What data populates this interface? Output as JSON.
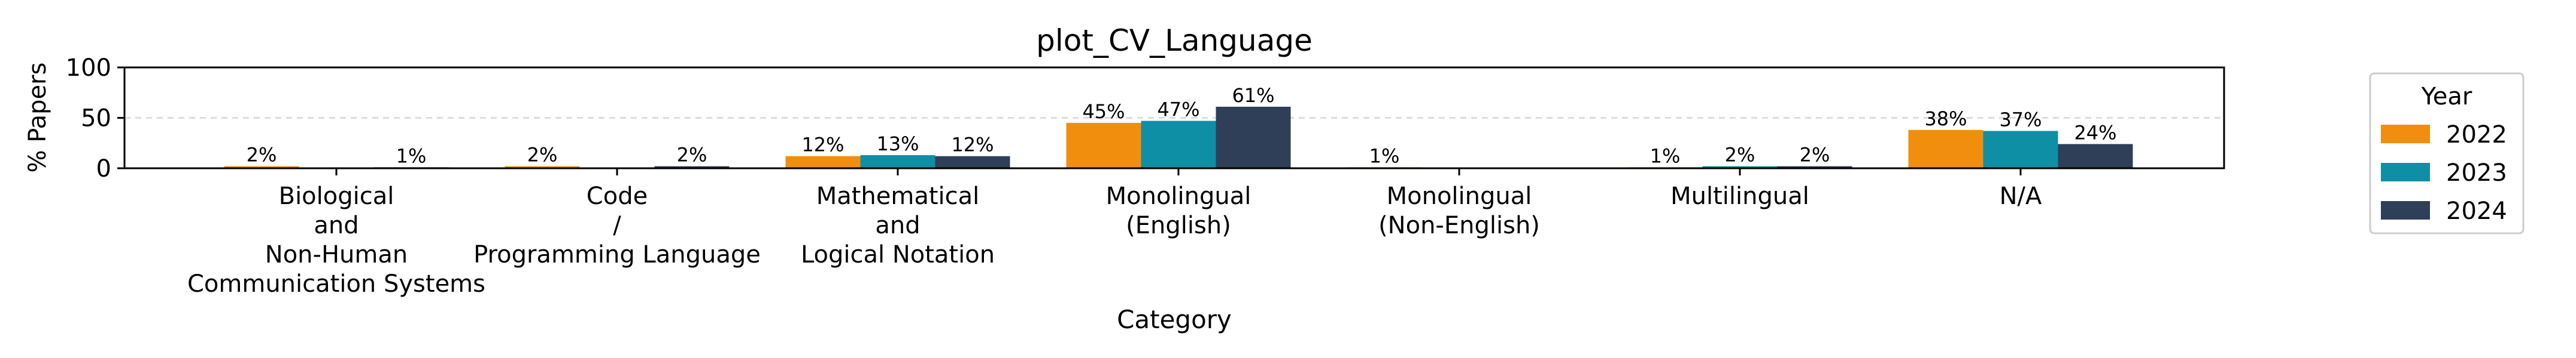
{
  "chart_data": {
    "type": "bar",
    "title": "plot_CV_Language",
    "xlabel": "Category",
    "ylabel": "% Papers",
    "ylim": [
      0,
      100
    ],
    "yticks": [
      "0",
      "50",
      "100"
    ],
    "grid": "horizontal dashed",
    "legend": {
      "title": "Year",
      "placement": "right"
    },
    "categories": [
      "Biological\nand\nNon-Human\nCommunication Systems",
      "Code\n/\nProgramming Language",
      "Mathematical\nand\nLogical Notation",
      "Monolingual\n(English)",
      "Monolingual\n(Non-English)",
      "Multilingual",
      "N/A"
    ],
    "series": [
      {
        "name": "2022",
        "color": "#f28e0e",
        "values": [
          2,
          2,
          12,
          45,
          1,
          1,
          38
        ],
        "labels": [
          "2%",
          "2%",
          "12%",
          "45%",
          "1%",
          "1%",
          "38%"
        ]
      },
      {
        "name": "2023",
        "color": "#0e8fa6",
        "values": [
          0,
          0,
          13,
          47,
          0,
          2,
          37
        ],
        "labels": [
          "",
          "",
          "13%",
          "47%",
          "",
          "2%",
          "37%"
        ]
      },
      {
        "name": "2024",
        "color": "#2e3f57",
        "values": [
          1,
          2,
          12,
          61,
          0,
          2,
          24
        ],
        "labels": [
          "1%",
          "2%",
          "12%",
          "61%",
          "",
          "2%",
          "24%"
        ]
      }
    ]
  }
}
